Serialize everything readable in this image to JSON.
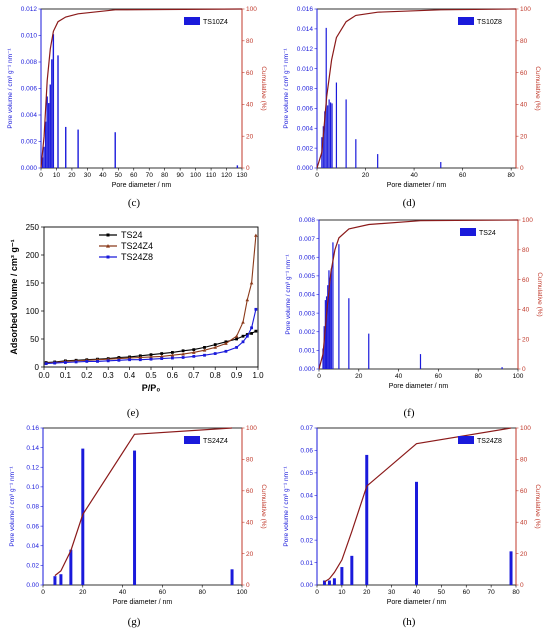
{
  "colors": {
    "bar": "#1a1adb",
    "cumulative": "#8b1a1a",
    "axis_blue": "#1a1adb",
    "axis_red": "#c0392b",
    "ts24": "#000000",
    "ts24z4": "#8b3a1a",
    "ts24z8": "#1a1adb"
  },
  "chart_data": [
    {
      "id": "c",
      "type": "bar",
      "panel_label": "(c)",
      "legend": "TS10Z4",
      "xlabel": "Pore diameter / nm",
      "ylabel": "Pore volume / cm³ g⁻¹ nm⁻¹",
      "y2label": "Cumulative (%)",
      "xlim": [
        0,
        130
      ],
      "ylim": [
        0,
        0.012
      ],
      "y2lim": [
        0,
        100
      ],
      "xticks": [
        "0",
        "10",
        "20",
        "30",
        "40",
        "50",
        "60",
        "70",
        "80",
        "90",
        "100",
        "110",
        "120",
        "130"
      ],
      "yticks": [
        "0.000",
        "0.002",
        "0.004",
        "0.006",
        "0.008",
        "0.010",
        "0.012"
      ],
      "y2ticks": [
        "0",
        "20",
        "40",
        "60",
        "80",
        "100"
      ],
      "bars": [
        [
          1,
          0.0008
        ],
        [
          2,
          0.0016
        ],
        [
          3,
          0.0035
        ],
        [
          4,
          0.0054
        ],
        [
          5,
          0.0049
        ],
        [
          6,
          0.0063
        ],
        [
          7,
          0.0082
        ],
        [
          8,
          0.0101
        ],
        [
          11,
          0.0085
        ],
        [
          16,
          0.0031
        ],
        [
          24,
          0.0029
        ],
        [
          48,
          0.0027
        ],
        [
          127,
          0.0002
        ]
      ],
      "bar_width": 0.9,
      "cumulative": [
        [
          0,
          0
        ],
        [
          2,
          20
        ],
        [
          4,
          55
        ],
        [
          6,
          75
        ],
        [
          8,
          86
        ],
        [
          11,
          92
        ],
        [
          16,
          95
        ],
        [
          24,
          97
        ],
        [
          48,
          99.5
        ],
        [
          130,
          100
        ]
      ]
    },
    {
      "id": "d",
      "type": "bar",
      "panel_label": "(d)",
      "legend": "TS10Z8",
      "xlabel": "Pore diameter / nm",
      "ylabel": "Pore volume / cm³ g⁻¹ nm⁻¹",
      "y2label": "Cumulative (%)",
      "xlim": [
        0,
        82
      ],
      "ylim": [
        0,
        0.016
      ],
      "y2lim": [
        0,
        100
      ],
      "xticks": [
        "0",
        "20",
        "40",
        "60",
        "80"
      ],
      "yticks": [
        "0.000",
        "0.002",
        "0.004",
        "0.006",
        "0.008",
        "0.010",
        "0.012",
        "0.014",
        "0.016"
      ],
      "y2ticks": [
        "0",
        "20",
        "40",
        "60",
        "80",
        "100"
      ],
      "bars": [
        [
          2,
          0.0031
        ],
        [
          2.6,
          0.0042
        ],
        [
          3.2,
          0.0057
        ],
        [
          3.8,
          0.0141
        ],
        [
          4.4,
          0.0063
        ],
        [
          5.0,
          0.0069
        ],
        [
          5.6,
          0.0066
        ],
        [
          6.2,
          0.0065
        ],
        [
          8,
          0.0086
        ],
        [
          12,
          0.0069
        ],
        [
          16,
          0.0029
        ],
        [
          25,
          0.0014
        ],
        [
          51,
          0.0006
        ]
      ],
      "bar_width": 0.45,
      "cumulative": [
        [
          0,
          0
        ],
        [
          2,
          10
        ],
        [
          4,
          45
        ],
        [
          6,
          68
        ],
        [
          8,
          82
        ],
        [
          12,
          92
        ],
        [
          16,
          96
        ],
        [
          25,
          98
        ],
        [
          51,
          99.5
        ],
        [
          82,
          100
        ]
      ]
    },
    {
      "id": "e",
      "type": "line",
      "panel_label": "(e)",
      "xlabel": "P/P₀",
      "ylabel": "Adsorbed volume / cm³ g⁻¹",
      "xlim": [
        0,
        1.0
      ],
      "ylim": [
        0,
        250
      ],
      "xticks": [
        "0.0",
        "0.1",
        "0.2",
        "0.3",
        "0.4",
        "0.5",
        "0.6",
        "0.7",
        "0.8",
        "0.9",
        "1.0"
      ],
      "yticks": [
        "0",
        "50",
        "100",
        "150",
        "200",
        "250"
      ],
      "series": [
        {
          "name": "TS24",
          "x": [
            0.01,
            0.05,
            0.1,
            0.15,
            0.2,
            0.25,
            0.3,
            0.35,
            0.4,
            0.45,
            0.5,
            0.55,
            0.6,
            0.65,
            0.7,
            0.75,
            0.8,
            0.85,
            0.9,
            0.93,
            0.95,
            0.97,
            0.99
          ],
          "y": [
            8,
            9,
            11,
            12,
            13,
            14,
            15,
            17,
            18,
            20,
            22,
            24,
            26,
            29,
            31,
            35,
            40,
            45,
            50,
            55,
            58,
            60,
            64
          ]
        },
        {
          "name": "TS24Z4",
          "x": [
            0.01,
            0.05,
            0.1,
            0.15,
            0.2,
            0.25,
            0.3,
            0.35,
            0.4,
            0.45,
            0.5,
            0.55,
            0.6,
            0.65,
            0.7,
            0.75,
            0.8,
            0.85,
            0.9,
            0.93,
            0.95,
            0.97,
            0.99
          ],
          "y": [
            7,
            8,
            10,
            11,
            12,
            13,
            14,
            15,
            16,
            17,
            18,
            19,
            21,
            23,
            26,
            30,
            35,
            42,
            55,
            80,
            120,
            150,
            235
          ]
        },
        {
          "name": "TS24Z8",
          "x": [
            0.01,
            0.05,
            0.1,
            0.15,
            0.2,
            0.25,
            0.3,
            0.35,
            0.4,
            0.45,
            0.5,
            0.55,
            0.6,
            0.65,
            0.7,
            0.75,
            0.8,
            0.85,
            0.9,
            0.93,
            0.95,
            0.97,
            0.99
          ],
          "y": [
            6,
            7,
            8,
            9,
            10,
            10,
            11,
            12,
            13,
            13,
            14,
            15,
            16,
            17,
            19,
            21,
            24,
            28,
            35,
            45,
            55,
            70,
            103
          ]
        }
      ]
    },
    {
      "id": "f",
      "type": "bar",
      "panel_label": "(f)",
      "legend": "TS24",
      "xlabel": "Pore diameter / nm",
      "ylabel": "Pore volume / cm³ g⁻¹ nm⁻¹",
      "y2label": "Cumulative (%)",
      "xlim": [
        0,
        100
      ],
      "ylim": [
        0,
        0.008
      ],
      "y2lim": [
        0,
        100
      ],
      "xticks": [
        "0",
        "20",
        "40",
        "60",
        "80",
        "100"
      ],
      "yticks": [
        "0.000",
        "0.001",
        "0.002",
        "0.003",
        "0.004",
        "0.005",
        "0.006",
        "0.007",
        "0.008"
      ],
      "y2ticks": [
        "0",
        "20",
        "40",
        "60",
        "80",
        "100"
      ],
      "bars": [
        [
          2,
          0.0011
        ],
        [
          2.6,
          0.0023
        ],
        [
          3.2,
          0.0037
        ],
        [
          3.8,
          0.0039
        ],
        [
          4.4,
          0.0045
        ],
        [
          5.0,
          0.0053
        ],
        [
          5.6,
          0.0049
        ],
        [
          6.2,
          0.0054
        ],
        [
          7.0,
          0.0068
        ],
        [
          10,
          0.0067
        ],
        [
          15,
          0.0038
        ],
        [
          25,
          0.0019
        ],
        [
          51,
          0.0008
        ],
        [
          92,
          0.0001
        ]
      ],
      "bar_width": 0.5,
      "cumulative": [
        [
          0,
          0
        ],
        [
          2,
          10
        ],
        [
          4,
          40
        ],
        [
          6,
          65
        ],
        [
          8,
          80
        ],
        [
          10,
          88
        ],
        [
          15,
          94
        ],
        [
          25,
          97
        ],
        [
          51,
          99.5
        ],
        [
          100,
          100
        ]
      ]
    },
    {
      "id": "g",
      "type": "bar",
      "panel_label": "(g)",
      "legend": "TS24Z4",
      "xlabel": "Pore diameter / nm",
      "ylabel": "Pore volume / cm³ g⁻¹ nm⁻¹",
      "y2label": "Cumulative (%)",
      "xlim": [
        0,
        100
      ],
      "ylim": [
        0,
        0.16
      ],
      "y2lim": [
        0,
        100
      ],
      "xticks": [
        "0",
        "20",
        "40",
        "60",
        "80",
        "100"
      ],
      "yticks": [
        "0.00",
        "0.02",
        "0.04",
        "0.06",
        "0.08",
        "0.10",
        "0.12",
        "0.14",
        "0.16"
      ],
      "y2ticks": [
        "0",
        "20",
        "40",
        "60",
        "80",
        "100"
      ],
      "bars": [
        [
          6,
          0.009
        ],
        [
          9,
          0.011
        ],
        [
          14,
          0.036
        ],
        [
          20,
          0.139
        ],
        [
          46,
          0.137
        ],
        [
          95,
          0.016
        ]
      ],
      "bar_width": 1.5,
      "cumulative": [
        [
          6,
          6
        ],
        [
          9,
          9
        ],
        [
          14,
          22
        ],
        [
          20,
          45
        ],
        [
          46,
          96
        ],
        [
          95,
          100
        ]
      ]
    },
    {
      "id": "h",
      "type": "bar",
      "panel_label": "(h)",
      "legend": "TS24Z8",
      "xlabel": "Pore diameter / nm",
      "ylabel": "Pore volume / cm³ g⁻¹ nm⁻¹",
      "y2label": "Cumulative (%)",
      "xlim": [
        0,
        80
      ],
      "ylim": [
        0,
        0.07
      ],
      "y2lim": [
        0,
        100
      ],
      "xticks": [
        "0",
        "10",
        "20",
        "30",
        "40",
        "50",
        "60",
        "70",
        "80"
      ],
      "yticks": [
        "0.00",
        "0.01",
        "0.02",
        "0.03",
        "0.04",
        "0.05",
        "0.06",
        "0.07"
      ],
      "y2ticks": [
        "0",
        "20",
        "40",
        "60",
        "80",
        "100"
      ],
      "bars": [
        [
          3,
          0.002
        ],
        [
          5,
          0.002
        ],
        [
          7,
          0.003
        ],
        [
          10,
          0.008
        ],
        [
          14,
          0.013
        ],
        [
          20,
          0.058
        ],
        [
          40,
          0.046
        ],
        [
          78,
          0.015
        ]
      ],
      "bar_width": 1.2,
      "cumulative": [
        [
          3,
          2
        ],
        [
          5,
          4
        ],
        [
          7,
          8
        ],
        [
          10,
          16
        ],
        [
          14,
          34
        ],
        [
          20,
          63
        ],
        [
          40,
          90
        ],
        [
          78,
          100
        ]
      ]
    }
  ]
}
